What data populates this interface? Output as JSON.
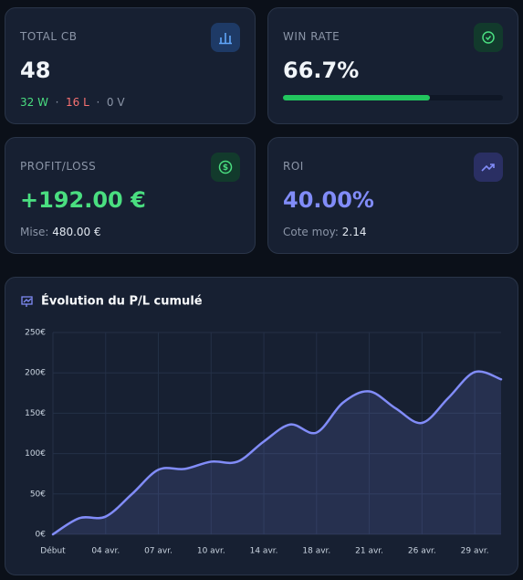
{
  "cards": [
    {
      "label": "TOTAL CB",
      "value": 48,
      "wins": "32 W",
      "losses": "16 L",
      "voids": "0 V"
    },
    {
      "label": "WIN RATE",
      "value": "66.7%",
      "progress": 66.7
    },
    {
      "label": "PROFIT/LOSS",
      "value": "+192.00 €",
      "detail_label": "Mise:",
      "detail_value": "480.00 €"
    },
    {
      "label": "ROI",
      "value": "40.00%",
      "detail_label": "Cote moy:",
      "detail_value": "2.14"
    }
  ],
  "chart_data": {
    "type": "line",
    "title": "Évolution du P/L cumulé",
    "categories": [
      "Début",
      null,
      "04 avr.",
      null,
      "07 avr.",
      null,
      "10 avr.",
      null,
      "14 avr.",
      null,
      "18 avr.",
      null,
      "21 avr.",
      null,
      "26 avr.",
      null,
      "29 avr.",
      null
    ],
    "series": [
      {
        "name": "P/L cumulé",
        "color": "#818cf8",
        "values": [
          0,
          20,
          22,
          50,
          80,
          81,
          90,
          90,
          115,
          136,
          126,
          163,
          177,
          156,
          138,
          169,
          201,
          192
        ]
      }
    ],
    "ylim": [
      0,
      250
    ],
    "yticks": [
      {
        "value": 0,
        "label": "0€"
      },
      {
        "value": 50,
        "label": "50€"
      },
      {
        "value": 100,
        "label": "100€"
      },
      {
        "value": 150,
        "label": "150€"
      },
      {
        "value": 200,
        "label": "200€"
      },
      {
        "value": 250,
        "label": "250€"
      }
    ],
    "grid": true
  }
}
